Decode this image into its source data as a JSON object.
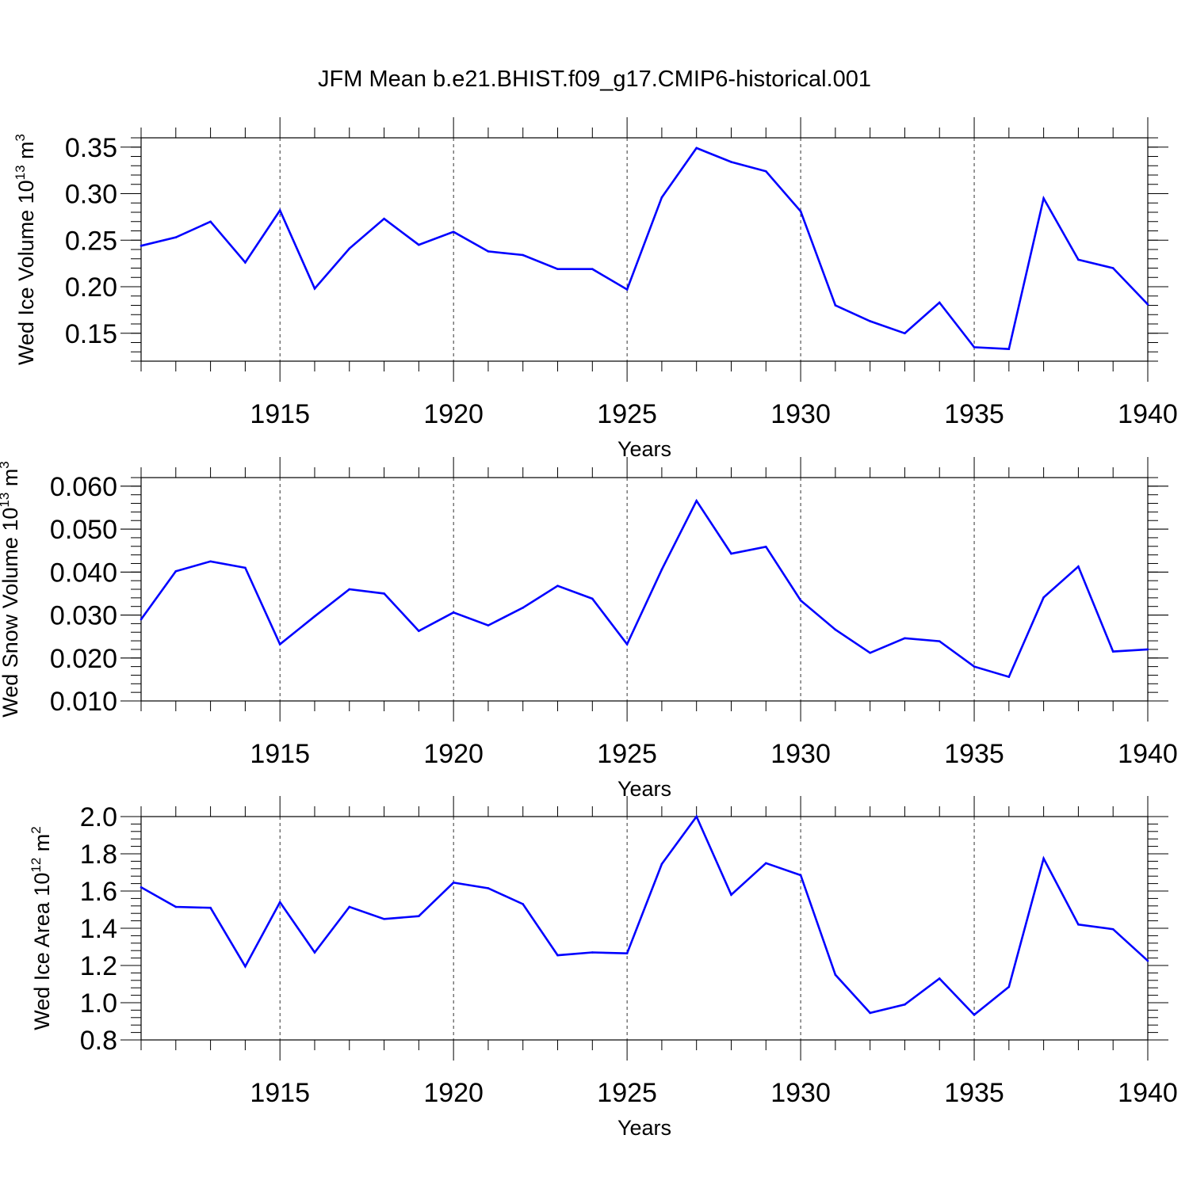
{
  "figure": {
    "title": "JFM Mean b.e21.BHIST.f09_g17.CMIP6-historical.001"
  },
  "chart_data": [
    {
      "type": "line",
      "title": "JFM Mean b.e21.BHIST.f09_g17.CMIP6-historical.001",
      "xlabel": "Years",
      "ylabel_main": "Wed Ice Volume 10",
      "ylabel_exp": "13",
      "ylabel_unit": " m",
      "ylabel_unit_exp": "3",
      "xlim": [
        1911,
        1940
      ],
      "ylim": [
        0.12,
        0.36
      ],
      "xticks": [
        1915,
        1920,
        1925,
        1930,
        1935,
        1940
      ],
      "yticks": [
        0.15,
        0.2,
        0.25,
        0.3,
        0.35
      ],
      "ytick_labels": [
        "0.15",
        "0.20",
        "0.25",
        "0.30",
        "0.35"
      ],
      "grid": "vertical dashed at major x ticks",
      "color": "#0000ff",
      "x": [
        1911,
        1912,
        1913,
        1914,
        1915,
        1916,
        1917,
        1918,
        1919,
        1920,
        1921,
        1922,
        1923,
        1924,
        1925,
        1926,
        1927,
        1928,
        1929,
        1930,
        1931,
        1932,
        1933,
        1934,
        1935,
        1936,
        1937,
        1938,
        1939,
        1940
      ],
      "y": [
        0.244,
        0.253,
        0.27,
        0.226,
        0.282,
        0.198,
        0.241,
        0.273,
        0.245,
        0.259,
        0.238,
        0.234,
        0.219,
        0.219,
        0.197,
        0.296,
        0.349,
        0.334,
        0.324,
        0.281,
        0.18,
        0.163,
        0.15,
        0.183,
        0.135,
        0.133,
        0.295,
        0.229,
        0.22,
        0.181
      ]
    },
    {
      "type": "line",
      "xlabel": "Years",
      "ylabel_main": "Wed Snow Volume 10",
      "ylabel_exp": "13",
      "ylabel_unit": " m",
      "ylabel_unit_exp": "3",
      "xlim": [
        1911,
        1940
      ],
      "ylim": [
        0.01,
        0.062
      ],
      "xticks": [
        1915,
        1920,
        1925,
        1930,
        1935,
        1940
      ],
      "yticks": [
        0.01,
        0.02,
        0.03,
        0.04,
        0.05,
        0.06
      ],
      "ytick_labels": [
        "0.010",
        "0.020",
        "0.030",
        "0.040",
        "0.050",
        "0.060"
      ],
      "grid": "vertical dashed at major x ticks",
      "color": "#0000ff",
      "x": [
        1911,
        1912,
        1913,
        1914,
        1915,
        1916,
        1917,
        1918,
        1919,
        1920,
        1921,
        1922,
        1923,
        1924,
        1925,
        1926,
        1927,
        1928,
        1929,
        1930,
        1931,
        1932,
        1933,
        1934,
        1935,
        1936,
        1937,
        1938,
        1939,
        1940
      ],
      "y": [
        0.029,
        0.0402,
        0.0425,
        0.041,
        0.0232,
        0.0297,
        0.036,
        0.035,
        0.0263,
        0.0306,
        0.0276,
        0.0317,
        0.0368,
        0.0338,
        0.0232,
        0.0406,
        0.0566,
        0.0443,
        0.0459,
        0.0334,
        0.0266,
        0.0212,
        0.0246,
        0.0239,
        0.018,
        0.0156,
        0.0341,
        0.0413,
        0.0215,
        0.022
      ]
    },
    {
      "type": "line",
      "xlabel": "Years",
      "ylabel_main": "Wed Ice Area 10",
      "ylabel_exp": "12",
      "ylabel_unit": " m",
      "ylabel_unit_exp": "2",
      "xlim": [
        1911,
        1940
      ],
      "ylim": [
        0.8,
        2.0
      ],
      "xticks": [
        1915,
        1920,
        1925,
        1930,
        1935,
        1940
      ],
      "yticks": [
        0.8,
        1.0,
        1.2,
        1.4,
        1.6,
        1.8,
        2.0
      ],
      "ytick_labels": [
        "0.8",
        "1.0",
        "1.2",
        "1.4",
        "1.6",
        "1.8",
        "2.0"
      ],
      "grid": "vertical dashed at major x ticks",
      "color": "#0000ff",
      "x": [
        1911,
        1912,
        1913,
        1914,
        1915,
        1916,
        1917,
        1918,
        1919,
        1920,
        1921,
        1922,
        1923,
        1924,
        1925,
        1926,
        1927,
        1928,
        1929,
        1930,
        1931,
        1932,
        1933,
        1934,
        1935,
        1936,
        1937,
        1938,
        1939,
        1940
      ],
      "y": [
        1.62,
        1.515,
        1.51,
        1.195,
        1.54,
        1.27,
        1.515,
        1.45,
        1.465,
        1.645,
        1.615,
        1.53,
        1.255,
        1.27,
        1.265,
        1.745,
        2.0,
        1.58,
        1.75,
        1.685,
        1.15,
        0.945,
        0.99,
        1.13,
        0.935,
        1.085,
        1.775,
        1.42,
        1.395,
        1.225
      ]
    }
  ]
}
